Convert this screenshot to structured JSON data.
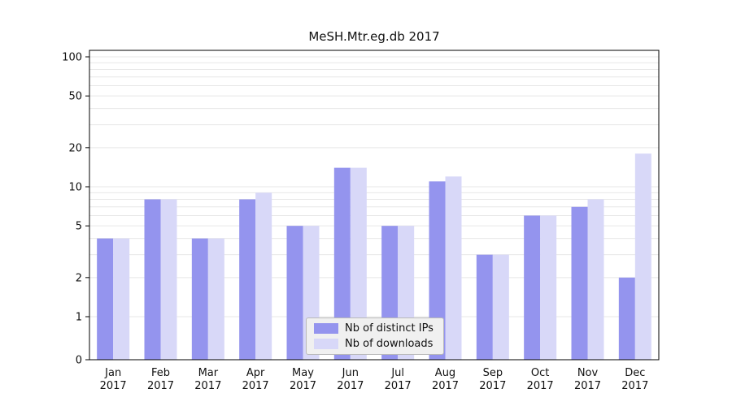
{
  "title": "MeSH.Mtr.eg.db 2017",
  "chart_data": {
    "type": "bar",
    "title": "MeSH.Mtr.eg.db 2017",
    "xlabel": "",
    "ylabel": "",
    "scale": "log",
    "grid": true,
    "legend_position": "bottom-center",
    "year": "2017",
    "categories": [
      "Jan",
      "Feb",
      "Mar",
      "Apr",
      "May",
      "Jun",
      "Jul",
      "Aug",
      "Sep",
      "Oct",
      "Nov",
      "Dec"
    ],
    "series": [
      {
        "name": "Nb of distinct IPs",
        "color": "#9494ee",
        "values": [
          4,
          8,
          4,
          8,
          5,
          14,
          5,
          11,
          3,
          6,
          7,
          2
        ]
      },
      {
        "name": "Nb of downloads",
        "color": "#d8d8f8",
        "values": [
          4,
          8,
          4,
          9,
          5,
          14,
          5,
          12,
          3,
          6,
          8,
          18
        ]
      }
    ],
    "yticks": [
      0,
      1,
      2,
      5,
      10,
      20,
      50,
      100
    ],
    "minor_gridlines": [
      3,
      4,
      6,
      7,
      8,
      9,
      30,
      40,
      60,
      70,
      80,
      90
    ],
    "ylim": [
      0,
      110
    ],
    "colors": {
      "gridline": "#e7e7e7",
      "axis": "#000000",
      "text": "#111111",
      "legend_bg": "#f0f0f0"
    }
  }
}
